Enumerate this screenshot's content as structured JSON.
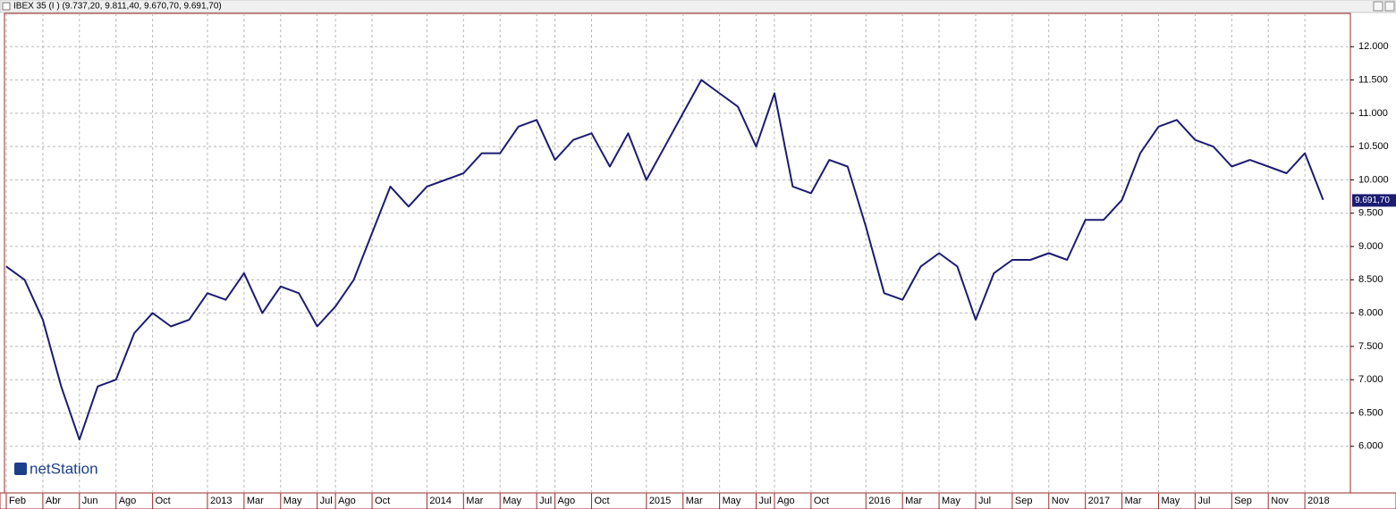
{
  "window_title": "IBEX 35 (I ) (9.737,20, 9.811,40, 9.670,70, 9.691,70)",
  "chart_data": {
    "type": "line",
    "watermark": "netStation",
    "x": [
      "2012-02",
      "2012-03",
      "2012-04",
      "2012-05",
      "2012-06",
      "2012-07",
      "2012-08",
      "2012-09",
      "2012-10",
      "2012-11",
      "2012-12",
      "2013-01",
      "2013-02",
      "2013-03",
      "2013-04",
      "2013-05",
      "2013-06",
      "2013-07",
      "2013-08",
      "2013-09",
      "2013-10",
      "2013-11",
      "2013-12",
      "2014-01",
      "2014-02",
      "2014-03",
      "2014-04",
      "2014-05",
      "2014-06",
      "2014-07",
      "2014-08",
      "2014-09",
      "2014-10",
      "2014-11",
      "2014-12",
      "2015-01",
      "2015-02",
      "2015-03",
      "2015-04",
      "2015-05",
      "2015-06",
      "2015-07",
      "2015-08",
      "2015-09",
      "2015-10",
      "2015-11",
      "2015-12",
      "2016-01",
      "2016-02",
      "2016-03",
      "2016-04",
      "2016-05",
      "2016-06",
      "2016-07",
      "2016-08",
      "2016-09",
      "2016-10",
      "2016-11",
      "2016-12",
      "2017-01",
      "2017-02",
      "2017-03",
      "2017-04",
      "2017-05",
      "2017-06",
      "2017-07",
      "2017-08",
      "2017-09",
      "2017-10",
      "2017-11",
      "2017-12",
      "2018-01",
      "2018-02"
    ],
    "series": [
      {
        "name": "IBEX 35",
        "color": "#1c1c72",
        "values": [
          8700,
          8500,
          7900,
          6900,
          6100,
          6900,
          7000,
          7700,
          8000,
          7800,
          7900,
          8300,
          8200,
          8600,
          8000,
          8400,
          8300,
          7800,
          8100,
          8500,
          9200,
          9900,
          9600,
          9900,
          10000,
          10100,
          10400,
          10400,
          10800,
          10900,
          10300,
          10600,
          10700,
          10200,
          10700,
          10000,
          10500,
          11000,
          11500,
          11300,
          11100,
          10500,
          11300,
          9900,
          9800,
          10300,
          10200,
          9300,
          8300,
          8200,
          8700,
          8900,
          8700,
          7900,
          8600,
          8800,
          8800,
          8900,
          8800,
          9400,
          9400,
          9700,
          10400,
          10800,
          10900,
          10600,
          10500,
          10200,
          10300,
          10200,
          10100,
          10400,
          9700
        ]
      }
    ],
    "last_value": {
      "value": 9691.7,
      "label": "9.691,70"
    },
    "xlim": [
      "2012-02",
      "2018-03"
    ],
    "xticks": [
      {
        "value": "2012-02",
        "label": "Feb"
      },
      {
        "value": "2012-04",
        "label": "Abr"
      },
      {
        "value": "2012-06",
        "label": "Jun"
      },
      {
        "value": "2012-08",
        "label": "Ago"
      },
      {
        "value": "2012-10",
        "label": "Oct"
      },
      {
        "value": "2013-01",
        "label": "2013"
      },
      {
        "value": "2013-03",
        "label": "Mar"
      },
      {
        "value": "2013-05",
        "label": "May"
      },
      {
        "value": "2013-07",
        "label": "Jul"
      },
      {
        "value": "2013-08",
        "label": "Ago"
      },
      {
        "value": "2013-10",
        "label": "Oct"
      },
      {
        "value": "2014-01",
        "label": "2014"
      },
      {
        "value": "2014-03",
        "label": "Mar"
      },
      {
        "value": "2014-05",
        "label": "May"
      },
      {
        "value": "2014-07",
        "label": "Jul"
      },
      {
        "value": "2014-08",
        "label": "Ago"
      },
      {
        "value": "2014-10",
        "label": "Oct"
      },
      {
        "value": "2015-01",
        "label": "2015"
      },
      {
        "value": "2015-03",
        "label": "Mar"
      },
      {
        "value": "2015-05",
        "label": "May"
      },
      {
        "value": "2015-07",
        "label": "Jul"
      },
      {
        "value": "2015-08",
        "label": "Ago"
      },
      {
        "value": "2015-10",
        "label": "Oct"
      },
      {
        "value": "2016-01",
        "label": "2016"
      },
      {
        "value": "2016-03",
        "label": "Mar"
      },
      {
        "value": "2016-05",
        "label": "May"
      },
      {
        "value": "2016-07",
        "label": "Jul"
      },
      {
        "value": "2016-09",
        "label": "Sep"
      },
      {
        "value": "2016-11",
        "label": "Nov"
      },
      {
        "value": "2017-01",
        "label": "2017"
      },
      {
        "value": "2017-03",
        "label": "Mar"
      },
      {
        "value": "2017-05",
        "label": "May"
      },
      {
        "value": "2017-07",
        "label": "Jul"
      },
      {
        "value": "2017-09",
        "label": "Sep"
      },
      {
        "value": "2017-11",
        "label": "Nov"
      },
      {
        "value": "2018-01",
        "label": "2018"
      }
    ],
    "ylim": [
      5300,
      12500
    ],
    "yticks": [
      {
        "value": 6000,
        "label": "6.000"
      },
      {
        "value": 6500,
        "label": "6.500"
      },
      {
        "value": 7000,
        "label": "7.000"
      },
      {
        "value": 7500,
        "label": "7.500"
      },
      {
        "value": 8000,
        "label": "8.000"
      },
      {
        "value": 8500,
        "label": "8.500"
      },
      {
        "value": 9000,
        "label": "9.000"
      },
      {
        "value": 9500,
        "label": "9.500"
      },
      {
        "value": 10000,
        "label": "10.000"
      },
      {
        "value": 10500,
        "label": "10.500"
      },
      {
        "value": 11000,
        "label": "11.000"
      },
      {
        "value": 11500,
        "label": "11.500"
      },
      {
        "value": 12000,
        "label": "12.000"
      }
    ],
    "grid": true
  }
}
